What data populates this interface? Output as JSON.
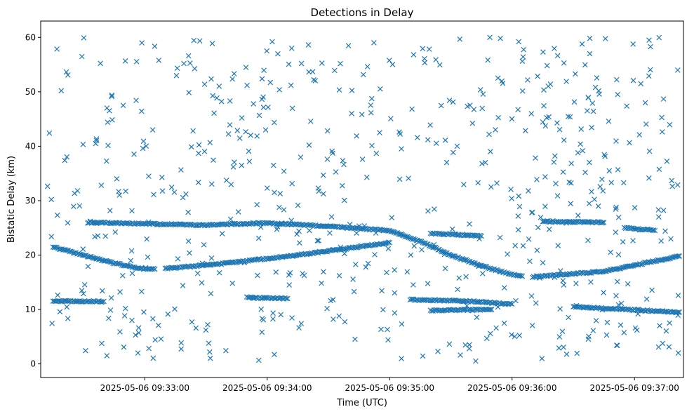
{
  "chart_data": {
    "type": "scatter",
    "title": "Detections in Delay",
    "xlabel": "Time (UTC)",
    "ylabel": "Bistatic Delay (km)",
    "marker": "x",
    "color": "#1f77b4",
    "grid": false,
    "legend": "none",
    "xlim": [
      "2025-05-06 09:32:09",
      "2025-05-06 09:37:24"
    ],
    "ylim": [
      -2.5,
      63
    ],
    "x_ticks": [
      "2025-05-06 09:33:00",
      "2025-05-06 09:34:00",
      "2025-05-06 09:35:00",
      "2025-05-06 09:36:00",
      "2025-05-06 09:37:00"
    ],
    "y_ticks": [
      0,
      10,
      20,
      30,
      40,
      50,
      60
    ],
    "time_range": [
      "2025-05-06 09:32:12",
      "2025-05-06 09:37:22"
    ],
    "tracks": [
      {
        "points": [
          [
            "2025-05-06 09:32:15",
            21.5
          ],
          [
            "2025-05-06 09:32:30",
            20.0
          ],
          [
            "2025-05-06 09:32:45",
            18.5
          ],
          [
            "2025-05-06 09:33:00",
            17.4
          ],
          [
            "2025-05-06 09:33:05",
            17.4
          ]
        ]
      },
      {
        "points": [
          [
            "2025-05-06 09:33:10",
            17.5
          ],
          [
            "2025-05-06 09:33:40",
            18.5
          ],
          [
            "2025-05-06 09:34:15",
            20.0
          ],
          [
            "2025-05-06 09:34:45",
            21.5
          ],
          [
            "2025-05-06 09:35:00",
            22.3
          ]
        ]
      },
      {
        "points": [
          [
            "2025-05-06 09:32:32",
            26.0
          ],
          [
            "2025-05-06 09:33:30",
            25.5
          ],
          [
            "2025-05-06 09:34:00",
            25.9
          ],
          [
            "2025-05-06 09:34:30",
            25.3
          ],
          [
            "2025-05-06 09:35:00",
            24.5
          ]
        ]
      },
      {
        "points": [
          [
            "2025-05-06 09:35:00",
            24.5
          ],
          [
            "2025-05-06 09:35:15",
            22.5
          ],
          [
            "2025-05-06 09:35:30",
            20.0
          ],
          [
            "2025-05-06 09:35:45",
            18.0
          ],
          [
            "2025-05-06 09:36:00",
            16.4
          ],
          [
            "2025-05-06 09:36:05",
            16.1
          ]
        ]
      },
      {
        "points": [
          [
            "2025-05-06 09:36:10",
            16.0
          ],
          [
            "2025-05-06 09:36:45",
            17.0
          ],
          [
            "2025-05-06 09:37:22",
            19.8
          ]
        ]
      },
      {
        "points": [
          [
            "2025-05-06 09:35:10",
            11.8
          ],
          [
            "2025-05-06 09:35:40",
            11.5
          ],
          [
            "2025-05-06 09:36:00",
            11.0
          ]
        ]
      },
      {
        "points": [
          [
            "2025-05-06 09:35:20",
            9.8
          ],
          [
            "2025-05-06 09:35:50",
            10.0
          ]
        ]
      },
      {
        "points": [
          [
            "2025-05-06 09:36:30",
            10.5
          ],
          [
            "2025-05-06 09:37:22",
            9.5
          ]
        ]
      },
      {
        "points": [
          [
            "2025-05-06 09:33:50",
            12.2
          ],
          [
            "2025-05-06 09:34:10",
            12.0
          ]
        ]
      },
      {
        "points": [
          [
            "2025-05-06 09:32:15",
            11.5
          ],
          [
            "2025-05-06 09:32:40",
            11.5
          ]
        ]
      },
      {
        "points": [
          [
            "2025-05-06 09:36:15",
            26.2
          ],
          [
            "2025-05-06 09:36:45",
            26.0
          ]
        ]
      },
      {
        "points": [
          [
            "2025-05-06 09:35:20",
            24.0
          ],
          [
            "2025-05-06 09:35:45",
            23.5
          ]
        ]
      },
      {
        "points": [
          [
            "2025-05-06 09:36:55",
            25.0
          ],
          [
            "2025-05-06 09:37:10",
            24.5
          ]
        ]
      }
    ],
    "noise": {
      "count": 620,
      "ymin": 0.5,
      "ymax": 60
    }
  }
}
